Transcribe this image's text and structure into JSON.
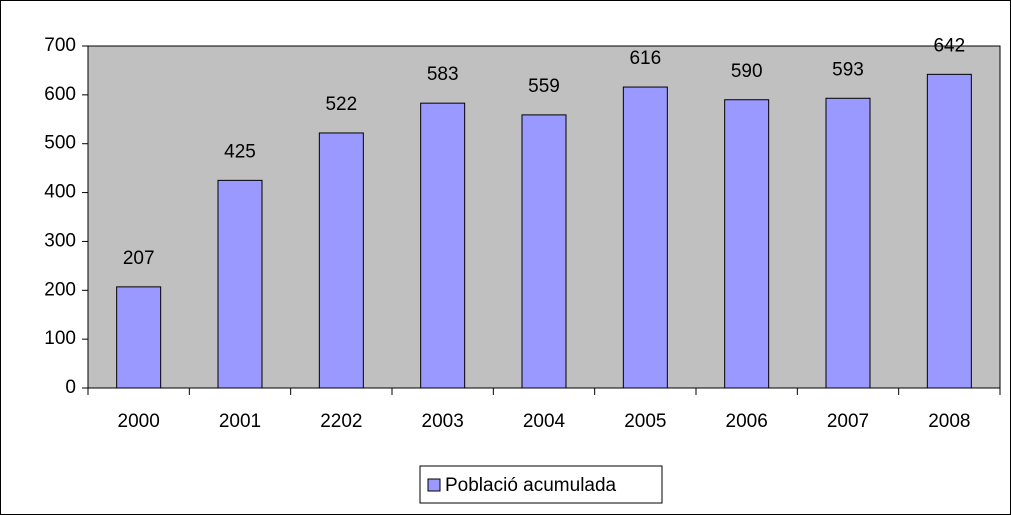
{
  "chart_data": {
    "type": "bar",
    "categories": [
      "2000",
      "2001",
      "2202",
      "2003",
      "2004",
      "2005",
      "2006",
      "2007",
      "2008"
    ],
    "series": [
      {
        "name": "Població acumulada",
        "color": "#9999ff",
        "values": [
          207,
          425,
          522,
          583,
          559,
          616,
          590,
          593,
          642
        ]
      }
    ],
    "ylim": [
      0,
      700
    ],
    "yticks": [
      0,
      100,
      200,
      300,
      400,
      500,
      600,
      700
    ],
    "grid": false,
    "legend": "bottom",
    "plot_background": "#c0c0c0"
  }
}
